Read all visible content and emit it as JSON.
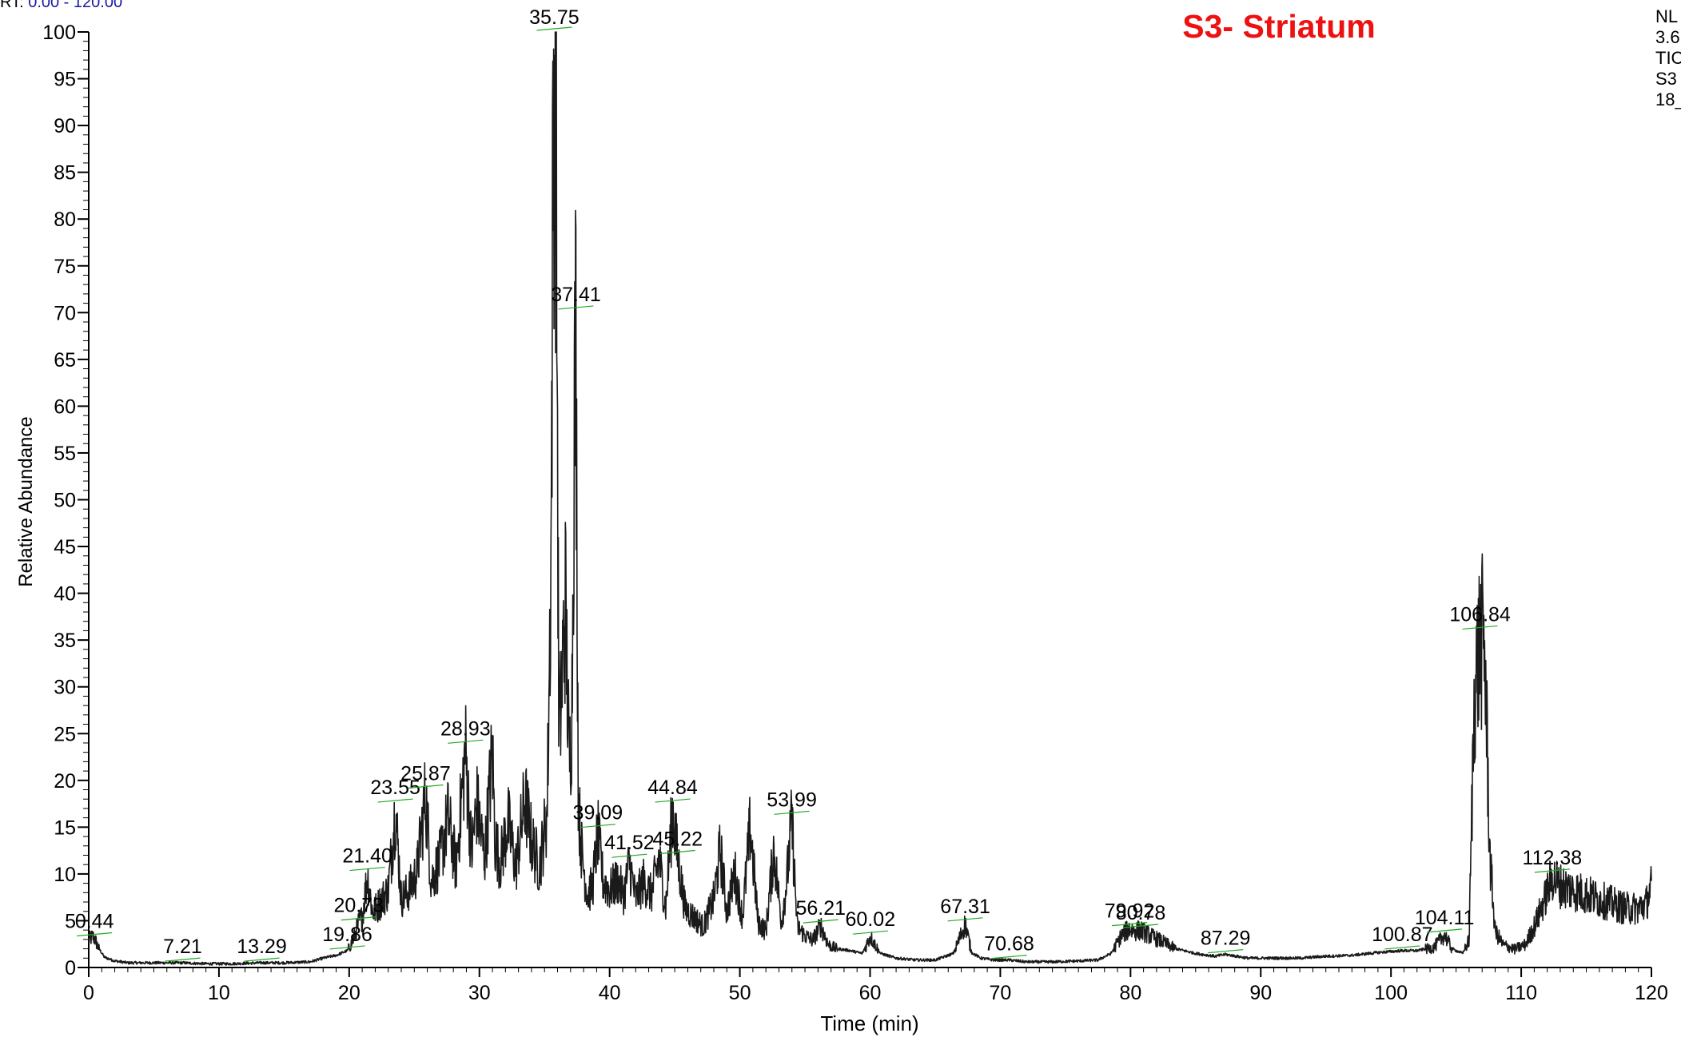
{
  "header": {
    "rt_label": "RT:",
    "rt_range": "0.00 - 120.00",
    "sample_title": "S3- Striatum",
    "info_lines": [
      "NL",
      "3.6",
      "TIC",
      "S3",
      "18_"
    ]
  },
  "colors": {
    "trace": "#1a1a1a",
    "title": "#ee1111",
    "peak_leader": "#22aa22",
    "axis": "#000000"
  },
  "chart_data": {
    "type": "line",
    "title": "S3- Striatum",
    "xlabel": "Time (min)",
    "ylabel": "Relative Abundance",
    "xlim": [
      0,
      120
    ],
    "ylim": [
      0,
      100
    ],
    "x_ticks": [
      0,
      10,
      20,
      30,
      40,
      50,
      60,
      70,
      80,
      90,
      100,
      110,
      120
    ],
    "y_ticks": [
      0,
      5,
      10,
      15,
      20,
      25,
      30,
      35,
      40,
      45,
      50,
      55,
      60,
      65,
      70,
      75,
      80,
      85,
      90,
      95,
      100
    ],
    "grid": false,
    "peak_labels": [
      {
        "label": "0.44",
        "rt": 0.44,
        "y": 3.2
      },
      {
        "label": "7.21",
        "rt": 7.21,
        "y": 0.5
      },
      {
        "label": "13.29",
        "rt": 13.29,
        "y": 0.5
      },
      {
        "label": "19.86",
        "rt": 19.86,
        "y": 1.8
      },
      {
        "label": "20.73",
        "rt": 20.73,
        "y": 4.9
      },
      {
        "label": "21.40",
        "rt": 21.4,
        "y": 10.2
      },
      {
        "label": "23.55",
        "rt": 23.55,
        "y": 17.5
      },
      {
        "label": "25.87",
        "rt": 25.87,
        "y": 19.0
      },
      {
        "label": "28.93",
        "rt": 28.93,
        "y": 23.8
      },
      {
        "label": "35.75",
        "rt": 35.75,
        "y": 100
      },
      {
        "label": "37.41",
        "rt": 37.41,
        "y": 70.2
      },
      {
        "label": "39.09",
        "rt": 39.09,
        "y": 14.8
      },
      {
        "label": "41.52",
        "rt": 41.52,
        "y": 11.6
      },
      {
        "label": "44.84",
        "rt": 44.84,
        "y": 17.5
      },
      {
        "label": "45.22",
        "rt": 45.22,
        "y": 12.0
      },
      {
        "label": "53.99",
        "rt": 53.99,
        "y": 16.2
      },
      {
        "label": "56.21",
        "rt": 56.21,
        "y": 4.6
      },
      {
        "label": "60.02",
        "rt": 60.02,
        "y": 3.4
      },
      {
        "label": "67.31",
        "rt": 67.31,
        "y": 4.8
      },
      {
        "label": "70.68",
        "rt": 70.68,
        "y": 0.8
      },
      {
        "label": "79.92",
        "rt": 79.92,
        "y": 4.3
      },
      {
        "label": "80.78",
        "rt": 80.78,
        "y": 4.1
      },
      {
        "label": "87.29",
        "rt": 87.29,
        "y": 1.4
      },
      {
        "label": "100.87",
        "rt": 100.87,
        "y": 1.8
      },
      {
        "label": "104.11",
        "rt": 104.11,
        "y": 3.6
      },
      {
        "label": "106.84",
        "rt": 106.84,
        "y": 36.0
      },
      {
        "label": "112.38",
        "rt": 112.38,
        "y": 10.0
      }
    ],
    "series": [
      {
        "x": [
          0,
          0.3,
          0.44,
          0.8,
          1.2,
          2,
          3,
          5,
          7.21,
          9,
          11,
          13.29,
          15,
          17,
          18,
          19,
          19.86,
          20.3,
          20.73,
          21.0,
          21.4,
          21.8,
          22.3,
          23.0,
          23.55,
          24.0,
          24.6,
          25.2,
          25.87,
          26.3,
          27.0,
          27.6,
          28.2,
          28.93,
          29.4,
          29.8,
          30.4,
          31.0,
          31.2,
          31.6,
          32.2,
          32.8,
          33.5,
          34.0,
          34.6,
          35.2,
          35.5,
          35.65,
          35.75,
          35.9,
          36.1,
          36.3,
          36.6,
          36.9,
          37.1,
          37.3,
          37.41,
          37.6,
          37.9,
          38.3,
          38.7,
          39.09,
          39.5,
          40.0,
          40.6,
          41.1,
          41.52,
          42.0,
          42.6,
          43.2,
          43.8,
          44.3,
          44.84,
          45.22,
          45.8,
          46.5,
          47.2,
          48.0,
          48.5,
          49.0,
          49.6,
          50.2,
          50.8,
          51.4,
          52.0,
          52.6,
          53.2,
          53.6,
          53.99,
          54.4,
          55.0,
          55.6,
          56.21,
          56.8,
          57.5,
          58.5,
          59.4,
          60.02,
          60.8,
          62,
          63.5,
          65,
          66.4,
          67.31,
          67.8,
          68.5,
          69.5,
          70.68,
          72,
          74,
          76,
          77.5,
          78.5,
          79.3,
          79.92,
          80.3,
          80.78,
          81.5,
          82.5,
          83.5,
          85,
          86.5,
          87.29,
          89,
          91,
          93,
          95,
          97,
          99,
          100.87,
          102,
          103.3,
          104.11,
          104.7,
          105.5,
          106.0,
          106.4,
          106.84,
          107.2,
          107.6,
          108.0,
          108.6,
          109.5,
          110.3,
          111.0,
          111.8,
          112.38,
          113.0,
          114,
          115,
          116,
          117,
          118,
          119,
          119.6,
          120
        ],
        "y": [
          3.0,
          3.4,
          3.2,
          2.0,
          1.1,
          0.7,
          0.5,
          0.5,
          0.5,
          0.4,
          0.4,
          0.5,
          0.5,
          0.6,
          1.0,
          1.3,
          1.8,
          3.0,
          4.9,
          5.5,
          10.2,
          6.0,
          7.0,
          8.5,
          17.5,
          7.5,
          8.5,
          10.5,
          19.0,
          9.5,
          12.0,
          16.5,
          11.0,
          23.8,
          12.5,
          18.0,
          12.0,
          23.6,
          14.0,
          11.5,
          16.0,
          11.0,
          18.5,
          14.0,
          11.0,
          17.0,
          45.0,
          88.0,
          100,
          90.5,
          25.0,
          30.0,
          40.5,
          22.0,
          28.0,
          62.0,
          70.2,
          18.0,
          12.0,
          8.0,
          9.0,
          14.8,
          9.5,
          8.5,
          9.5,
          8.0,
          11.6,
          7.5,
          9.5,
          8.0,
          12.0,
          6.5,
          17.5,
          12.0,
          6.5,
          5.5,
          4.5,
          7.5,
          13.0,
          6.0,
          10.5,
          5.5,
          15.5,
          5.0,
          4.0,
          13.0,
          5.0,
          9.5,
          16.2,
          4.5,
          3.5,
          3.0,
          4.6,
          2.5,
          2.0,
          1.8,
          1.5,
          3.4,
          1.5,
          1.0,
          0.8,
          0.8,
          1.5,
          4.8,
          1.6,
          1.0,
          0.8,
          0.8,
          0.6,
          0.6,
          0.7,
          0.8,
          1.5,
          3.5,
          4.3,
          4.0,
          4.1,
          3.5,
          2.8,
          2.0,
          1.5,
          1.2,
          1.4,
          1.0,
          1.0,
          1.0,
          1.2,
          1.3,
          1.6,
          1.8,
          1.8,
          2.2,
          3.6,
          2.0,
          1.5,
          3.0,
          30.0,
          36.0,
          35.0,
          12.0,
          4.0,
          2.5,
          2.0,
          2.5,
          4.5,
          7.5,
          10.0,
          9.0,
          8.5,
          8.0,
          7.5,
          7.0,
          6.5,
          6.5,
          7.0,
          9.0
        ]
      }
    ]
  }
}
